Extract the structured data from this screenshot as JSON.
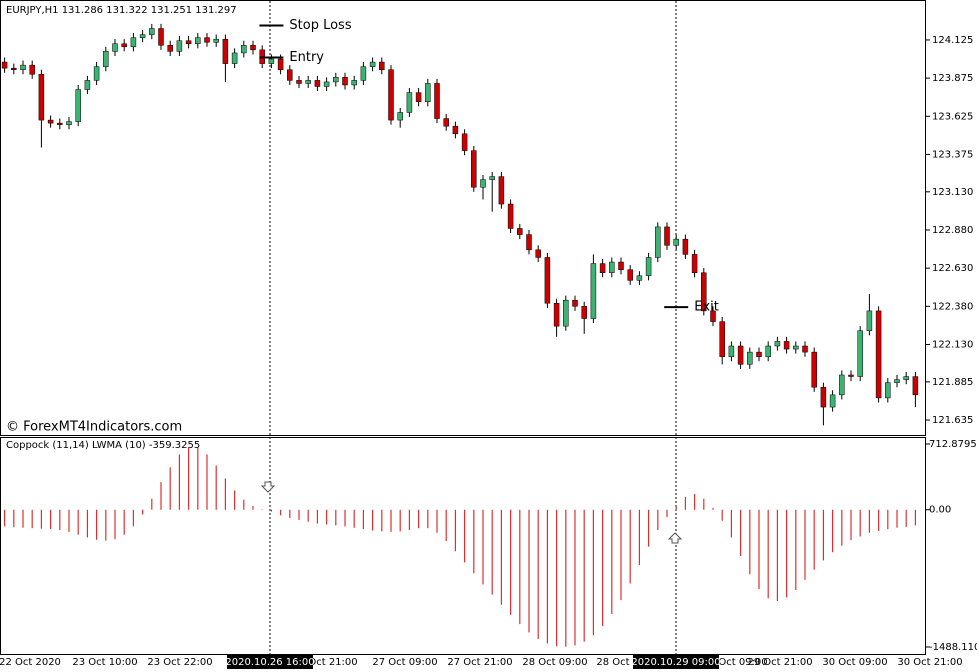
{
  "chart_data": [
    {
      "type": "candlestick",
      "title": "EURJPY,H1  131.286 131.322 131.251 131.297",
      "watermark": "© ForexMT4Indicators.com",
      "up_color": "#3cb371",
      "down_color": "#cc0000",
      "ylim": [
        121.537,
        124.367
      ],
      "yticks": [
        124.125,
        123.875,
        123.625,
        123.375,
        {
          "value": 123.13,
          "label": "123.130"
        },
        {
          "value": 122.88,
          "label": "122.880"
        },
        {
          "value": 122.63,
          "label": "122.630"
        },
        {
          "value": 122.38,
          "label": "122.380"
        },
        {
          "value": 122.13,
          "label": "122.130"
        },
        121.885,
        121.635
      ],
      "annotations": [
        {
          "text": "Stop Loss",
          "price": 124.22,
          "index": 29
        },
        {
          "text": "Entry",
          "price": 124.01,
          "index": 29
        },
        {
          "text": "Exit",
          "price": 122.375,
          "index": 73
        }
      ],
      "candles": [
        [
          123.98,
          124.01,
          123.91,
          123.94
        ],
        [
          123.94,
          123.97,
          123.9,
          123.93
        ],
        [
          123.93,
          123.99,
          123.9,
          123.96
        ],
        [
          123.96,
          123.99,
          123.87,
          123.9
        ],
        [
          123.9,
          123.93,
          123.42,
          123.6
        ],
        [
          123.6,
          123.63,
          123.55,
          123.58
        ],
        [
          123.58,
          123.61,
          123.54,
          123.57
        ],
        [
          123.57,
          123.62,
          123.54,
          123.59
        ],
        [
          123.59,
          123.83,
          123.56,
          123.8
        ],
        [
          123.8,
          123.89,
          123.77,
          123.86
        ],
        [
          123.86,
          123.98,
          123.83,
          123.95
        ],
        [
          123.95,
          124.08,
          123.92,
          124.05
        ],
        [
          124.05,
          124.13,
          124.02,
          124.1
        ],
        [
          124.1,
          124.13,
          124.05,
          124.08
        ],
        [
          124.08,
          124.17,
          124.05,
          124.14
        ],
        [
          124.14,
          124.19,
          124.11,
          124.16
        ],
        [
          124.16,
          124.23,
          124.13,
          124.2
        ],
        [
          124.2,
          124.23,
          124.06,
          124.09
        ],
        [
          124.09,
          124.12,
          124.02,
          124.05
        ],
        [
          124.05,
          124.15,
          124.02,
          124.12
        ],
        [
          124.12,
          124.15,
          124.07,
          124.1
        ],
        [
          124.1,
          124.17,
          124.07,
          124.14
        ],
        [
          124.14,
          124.17,
          124.08,
          124.11
        ],
        [
          124.11,
          124.16,
          124.08,
          124.13
        ],
        [
          124.13,
          124.16,
          123.85,
          123.97
        ],
        [
          123.97,
          124.07,
          123.94,
          124.04
        ],
        [
          124.04,
          124.12,
          124.01,
          124.09
        ],
        [
          124.09,
          124.12,
          124.03,
          124.06
        ],
        [
          124.06,
          124.09,
          123.94,
          123.97
        ],
        [
          123.97,
          124.03,
          123.94,
          124.0
        ],
        [
          124.0,
          124.03,
          123.9,
          123.93
        ],
        [
          123.93,
          123.96,
          123.83,
          123.86
        ],
        [
          123.86,
          123.89,
          123.81,
          123.84
        ],
        [
          123.84,
          123.89,
          123.81,
          123.86
        ],
        [
          123.86,
          123.89,
          123.79,
          123.82
        ],
        [
          123.82,
          123.88,
          123.79,
          123.85
        ],
        [
          123.85,
          123.91,
          123.82,
          123.88
        ],
        [
          123.88,
          123.91,
          123.8,
          123.83
        ],
        [
          123.83,
          123.89,
          123.8,
          123.86
        ],
        [
          123.86,
          123.98,
          123.83,
          123.95
        ],
        [
          123.95,
          124.01,
          123.92,
          123.98
        ],
        [
          123.98,
          124.01,
          123.9,
          123.93
        ],
        [
          123.93,
          123.96,
          123.57,
          123.6
        ],
        [
          123.6,
          123.68,
          123.55,
          123.65
        ],
        [
          123.65,
          123.81,
          123.62,
          123.78
        ],
        [
          123.78,
          123.81,
          123.69,
          123.72
        ],
        [
          123.72,
          123.87,
          123.69,
          123.84
        ],
        [
          123.84,
          123.87,
          123.58,
          123.61
        ],
        [
          123.61,
          123.64,
          123.53,
          123.56
        ],
        [
          123.56,
          123.59,
          123.48,
          123.51
        ],
        [
          123.51,
          123.54,
          123.37,
          123.4
        ],
        [
          123.4,
          123.43,
          123.13,
          123.16
        ],
        [
          123.16,
          123.24,
          123.08,
          123.21
        ],
        [
          123.21,
          123.26,
          123.0,
          123.23
        ],
        [
          123.23,
          123.26,
          123.02,
          123.05
        ],
        [
          123.05,
          123.08,
          122.86,
          122.89
        ],
        [
          122.89,
          122.92,
          122.82,
          122.85
        ],
        [
          122.85,
          122.88,
          122.72,
          122.75
        ],
        [
          122.75,
          122.78,
          122.67,
          122.7
        ],
        [
          122.7,
          122.73,
          122.37,
          122.4
        ],
        [
          122.4,
          122.43,
          122.18,
          122.25
        ],
        [
          122.25,
          122.45,
          122.22,
          122.42
        ],
        [
          122.42,
          122.45,
          122.35,
          122.38
        ],
        [
          122.38,
          122.41,
          122.2,
          122.3
        ],
        [
          122.3,
          122.72,
          122.27,
          122.66
        ],
        [
          122.66,
          122.69,
          122.57,
          122.6
        ],
        [
          122.6,
          122.7,
          122.57,
          122.67
        ],
        [
          122.67,
          122.7,
          122.59,
          122.62
        ],
        [
          122.62,
          122.65,
          122.52,
          122.55
        ],
        [
          122.55,
          122.61,
          122.52,
          122.58
        ],
        [
          122.58,
          122.73,
          122.55,
          122.7
        ],
        [
          122.7,
          122.93,
          122.67,
          122.9
        ],
        [
          122.9,
          122.93,
          122.75,
          122.78
        ],
        [
          122.78,
          122.85,
          122.75,
          122.82
        ],
        [
          122.82,
          122.85,
          122.69,
          122.72
        ],
        [
          122.72,
          122.75,
          122.57,
          122.6
        ],
        [
          122.6,
          122.63,
          122.32,
          122.35
        ],
        [
          122.35,
          122.38,
          122.25,
          122.28
        ],
        [
          122.28,
          122.31,
          122.0,
          122.05
        ],
        [
          122.05,
          122.15,
          122.02,
          122.12
        ],
        [
          122.12,
          122.15,
          121.97,
          122.0
        ],
        [
          122.0,
          122.11,
          121.97,
          122.08
        ],
        [
          122.08,
          122.11,
          122.02,
          122.05
        ],
        [
          122.05,
          122.15,
          122.02,
          122.12
        ],
        [
          122.12,
          122.18,
          122.09,
          122.15
        ],
        [
          122.15,
          122.18,
          122.07,
          122.1
        ],
        [
          122.1,
          122.15,
          122.07,
          122.12
        ],
        [
          122.12,
          122.15,
          122.05,
          122.08
        ],
        [
          122.08,
          122.11,
          121.82,
          121.85
        ],
        [
          121.85,
          121.88,
          121.6,
          121.72
        ],
        [
          121.72,
          121.83,
          121.69,
          121.8
        ],
        [
          121.8,
          121.96,
          121.77,
          121.93
        ],
        [
          121.93,
          121.96,
          121.89,
          121.92
        ],
        [
          121.92,
          122.25,
          121.89,
          122.22
        ],
        [
          122.22,
          122.46,
          122.19,
          122.35
        ],
        [
          122.35,
          122.38,
          121.75,
          121.78
        ],
        [
          121.78,
          121.91,
          121.75,
          121.88
        ],
        [
          121.88,
          121.93,
          121.85,
          121.9
        ],
        [
          121.9,
          121.95,
          121.87,
          121.92
        ],
        [
          121.92,
          121.95,
          121.72,
          121.8
        ]
      ],
      "time_labels": [
        "22 Oct 2020",
        "23 Oct 10:00",
        "23 Oct 22:00",
        "Oct 21:00",
        "27 Oct 09:00",
        "27 Oct 21:00",
        "28 Oct 09:00",
        "28 Oct",
        "Oct 09:00",
        "29 Oct 21:00",
        "30 Oct 09:00",
        "30 Oct 21:00"
      ],
      "crosshair_labels": [
        "2020.10.26 16:00",
        "2020.10.29 09:00"
      ]
    },
    {
      "type": "histogram",
      "title": "Coppock (11,14) LWMA (10)  -359.3255",
      "color": "#e03030",
      "ylim": [
        -1488.1104,
        712.8795
      ],
      "yticks": [
        712.8795,
        {
          "value": 0,
          "label": "0.00"
        },
        -1488.1104
      ],
      "values": [
        -180,
        -190,
        -195,
        -200,
        -205,
        -210,
        -220,
        -240,
        -270,
        -300,
        -325,
        -335,
        -320,
        -270,
        -180,
        -50,
        120,
        300,
        460,
        600,
        680,
        670,
        600,
        480,
        340,
        210,
        110,
        40,
        5,
        -20,
        -60,
        -90,
        -110,
        -130,
        -150,
        -160,
        -170,
        -180,
        -195,
        -210,
        -225,
        -235,
        -240,
        -235,
        -220,
        -200,
        -200,
        -250,
        -340,
        -450,
        -570,
        -690,
        -810,
        -920,
        -1030,
        -1140,
        -1240,
        -1330,
        -1400,
        -1450,
        -1480,
        -1485,
        -1470,
        -1430,
        -1360,
        -1260,
        -1130,
        -980,
        -800,
        -600,
        -400,
        -220,
        -80,
        30,
        140,
        170,
        120,
        20,
        -120,
        -300,
        -500,
        -700,
        -860,
        -960,
        -990,
        -950,
        -870,
        -760,
        -650,
        -550,
        -460,
        -390,
        -330,
        -290,
        -250,
        -230,
        -210,
        -195,
        -185,
        -170
      ]
    }
  ]
}
